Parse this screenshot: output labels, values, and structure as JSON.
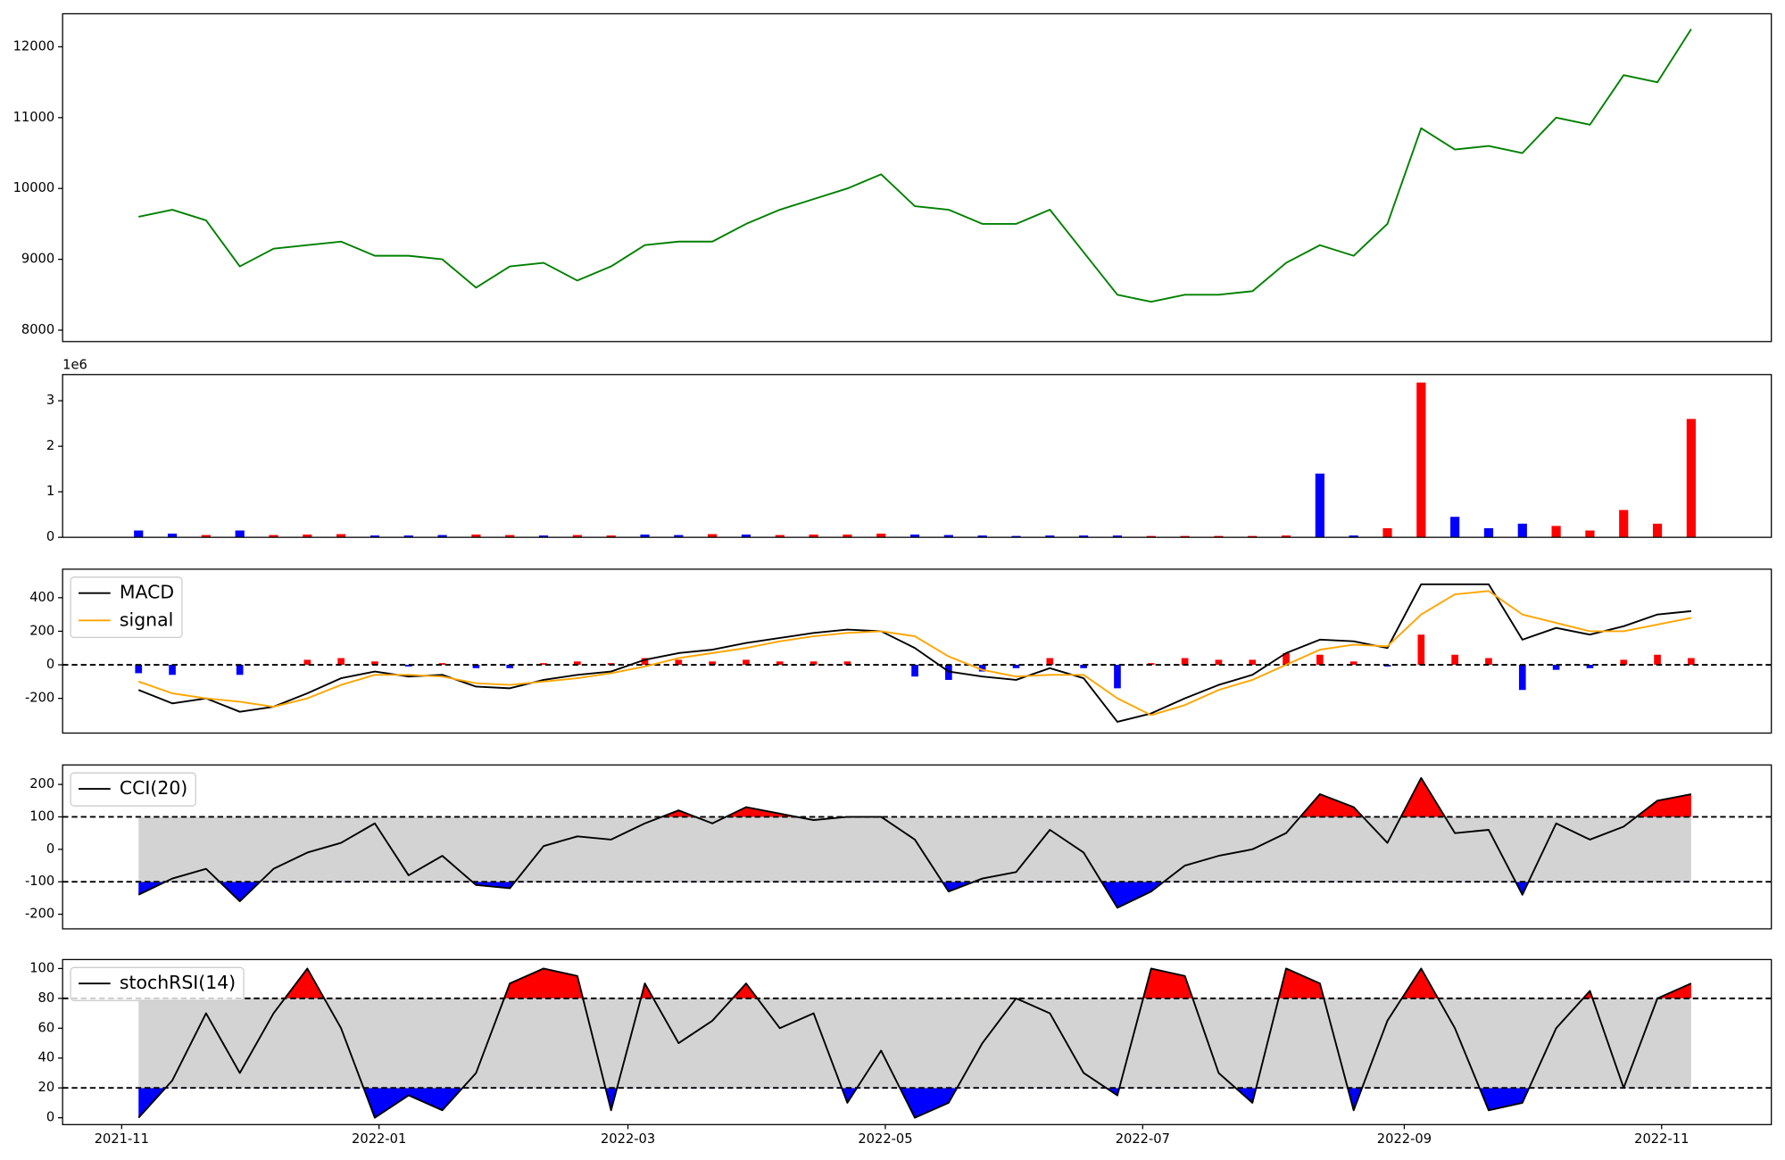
{
  "chart_data": [
    {
      "type": "line",
      "x": [
        18936,
        18944,
        18952,
        18960,
        18968,
        18976,
        18984,
        18992,
        19000,
        19008,
        19016,
        19024,
        19032,
        19040,
        19048,
        19056,
        19064,
        19072,
        19080,
        19088,
        19096,
        19104,
        19112,
        19120,
        19128,
        19136,
        19144,
        19152,
        19160,
        19168,
        19176,
        19184,
        19192,
        19200,
        19208,
        19216,
        19224,
        19232,
        19240,
        19248,
        19256,
        19264,
        19272,
        19280,
        19288,
        19296,
        19304
      ],
      "xlim": [
        18918,
        19323
      ],
      "series": [
        {
          "color": "green",
          "values": [
            9600,
            9700,
            9550,
            8900,
            9150,
            9200,
            9250,
            9050,
            9050,
            9000,
            8600,
            8900,
            8950,
            8700,
            8900,
            9200,
            9250,
            9250,
            9500,
            9700,
            9850,
            10000,
            10200,
            9750,
            9700,
            9500,
            9500,
            9700,
            9100,
            8500,
            8400,
            8500,
            8500,
            8550,
            8950,
            9200,
            9050,
            9500,
            10850,
            10550,
            10600,
            10500,
            11000,
            10900,
            11600,
            11500,
            12250
          ]
        }
      ],
      "ylim": [
        7839,
        12466
      ],
      "yticks": [
        8000,
        9000,
        10000,
        11000,
        12000
      ]
    },
    {
      "type": "bar",
      "x": [
        18936,
        18944,
        18952,
        18960,
        18968,
        18976,
        18984,
        18992,
        19000,
        19008,
        19016,
        19024,
        19032,
        19040,
        19048,
        19056,
        19064,
        19072,
        19080,
        19088,
        19096,
        19104,
        19112,
        19120,
        19128,
        19136,
        19144,
        19152,
        19160,
        19168,
        19176,
        19184,
        19192,
        19200,
        19208,
        19216,
        19224,
        19232,
        19240,
        19248,
        19256,
        19264,
        19272,
        19280,
        19288,
        19296,
        19304
      ],
      "xlim": [
        18918,
        19323
      ],
      "values": [
        150000,
        80000,
        50000,
        150000,
        50000,
        60000,
        70000,
        40000,
        40000,
        50000,
        60000,
        50000,
        40000,
        50000,
        40000,
        60000,
        50000,
        70000,
        60000,
        50000,
        60000,
        60000,
        80000,
        60000,
        50000,
        40000,
        30000,
        40000,
        40000,
        40000,
        30000,
        30000,
        30000,
        30000,
        40000,
        1400000,
        40000,
        200000,
        3400000,
        450000,
        200000,
        300000,
        250000,
        150000,
        600000,
        300000,
        2600000
      ],
      "colors": [
        "blue",
        "blue",
        "red",
        "blue",
        "red",
        "red",
        "red",
        "blue",
        "blue",
        "blue",
        "red",
        "red",
        "blue",
        "red",
        "red",
        "blue",
        "blue",
        "red",
        "blue",
        "red",
        "red",
        "red",
        "red",
        "blue",
        "blue",
        "blue",
        "blue",
        "blue",
        "blue",
        "blue",
        "red",
        "red",
        "red",
        "red",
        "red",
        "blue",
        "blue",
        "red",
        "red",
        "blue",
        "blue",
        "blue",
        "red",
        "red",
        "red",
        "red",
        "red"
      ],
      "ylim": [
        0,
        3575000
      ],
      "yticks": [
        0,
        {
          "value": 1000000,
          "label": "1"
        },
        {
          "value": 2000000,
          "label": "2"
        },
        {
          "value": 3000000,
          "label": "3"
        }
      ],
      "y_offset_label": "1e6"
    },
    {
      "type": "macd",
      "x": [
        18936,
        18944,
        18952,
        18960,
        18968,
        18976,
        18984,
        18992,
        19000,
        19008,
        19016,
        19024,
        19032,
        19040,
        19048,
        19056,
        19064,
        19072,
        19080,
        19088,
        19096,
        19104,
        19112,
        19120,
        19128,
        19136,
        19144,
        19152,
        19160,
        19168,
        19176,
        19184,
        19192,
        19200,
        19208,
        19216,
        19224,
        19232,
        19240,
        19248,
        19256,
        19264,
        19272,
        19280,
        19288,
        19296,
        19304
      ],
      "xlim": [
        18918,
        19323
      ],
      "series": [
        {
          "name": "MACD",
          "color": "black",
          "values": [
            -150,
            -230,
            -200,
            -280,
            -250,
            -170,
            -80,
            -40,
            -70,
            -60,
            -130,
            -140,
            -90,
            -60,
            -40,
            30,
            70,
            90,
            130,
            160,
            190,
            210,
            200,
            100,
            -40,
            -70,
            -90,
            -20,
            -80,
            -340,
            -290,
            -200,
            -120,
            -60,
            70,
            150,
            140,
            100,
            480,
            480,
            480,
            150,
            220,
            180,
            230,
            300,
            320
          ]
        },
        {
          "name": "signal",
          "color": "orange",
          "values": [
            -100,
            -170,
            -200,
            -220,
            -250,
            -200,
            -120,
            -60,
            -60,
            -70,
            -110,
            -120,
            -100,
            -80,
            -50,
            -10,
            40,
            70,
            100,
            140,
            170,
            190,
            200,
            170,
            50,
            -30,
            -70,
            -60,
            -60,
            -200,
            -300,
            -240,
            -150,
            -90,
            0,
            90,
            120,
            110,
            300,
            420,
            440,
            300,
            250,
            200,
            200,
            240,
            280
          ]
        }
      ],
      "histogram": {
        "pos_color": "red",
        "neg_color": "blue",
        "values": [
          -50,
          -60,
          0,
          -60,
          0,
          30,
          40,
          20,
          -10,
          10,
          -20,
          -20,
          10,
          20,
          10,
          40,
          30,
          20,
          30,
          20,
          20,
          20,
          0,
          -70,
          -90,
          -40,
          -20,
          40,
          -20,
          -140,
          10,
          40,
          30,
          30,
          70,
          60,
          20,
          -10,
          180,
          60,
          40,
          -150,
          -30,
          -20,
          30,
          60,
          40
        ]
      },
      "hline": 0,
      "ylim": [
        -407,
        570
      ],
      "yticks": [
        -200,
        0,
        200,
        400
      ],
      "legend": "upper left"
    },
    {
      "type": "oscillator",
      "x": [
        18936,
        18944,
        18952,
        18960,
        18968,
        18976,
        18984,
        18992,
        19000,
        19008,
        19016,
        19024,
        19032,
        19040,
        19048,
        19056,
        19064,
        19072,
        19080,
        19088,
        19096,
        19104,
        19112,
        19120,
        19128,
        19136,
        19144,
        19152,
        19160,
        19168,
        19176,
        19184,
        19192,
        19200,
        19208,
        19216,
        19224,
        19232,
        19240,
        19248,
        19256,
        19264,
        19272,
        19280,
        19288,
        19296,
        19304
      ],
      "xlim": [
        18918,
        19323
      ],
      "series": [
        {
          "name": "CCI(20)",
          "color": "black",
          "values": [
            -140,
            -90,
            -60,
            -160,
            -60,
            -10,
            20,
            80,
            -80,
            -20,
            -110,
            -120,
            10,
            40,
            30,
            80,
            120,
            80,
            130,
            110,
            90,
            100,
            100,
            30,
            -130,
            -90,
            -70,
            60,
            -10,
            -180,
            -130,
            -50,
            -20,
            0,
            50,
            170,
            130,
            20,
            220,
            50,
            60,
            -140,
            80,
            30,
            70,
            150,
            170
          ]
        }
      ],
      "upper": 100,
      "lower": -100,
      "band_color": "lightgray",
      "above_color": "red",
      "below_color": "blue",
      "ylim": [
        -245,
        260
      ],
      "yticks": [
        -200,
        -100,
        0,
        100,
        200
      ],
      "legend": "upper left"
    },
    {
      "type": "oscillator",
      "x": [
        18936,
        18944,
        18952,
        18960,
        18968,
        18976,
        18984,
        18992,
        19000,
        19008,
        19016,
        19024,
        19032,
        19040,
        19048,
        19056,
        19064,
        19072,
        19080,
        19088,
        19096,
        19104,
        19112,
        19120,
        19128,
        19136,
        19144,
        19152,
        19160,
        19168,
        19176,
        19184,
        19192,
        19200,
        19208,
        19216,
        19224,
        19232,
        19240,
        19248,
        19256,
        19264,
        19272,
        19280,
        19288,
        19296,
        19304
      ],
      "xlim": [
        18918,
        19323
      ],
      "series": [
        {
          "name": "stochRSI(14)",
          "color": "black",
          "values": [
            0,
            25,
            70,
            30,
            70,
            100,
            60,
            0,
            15,
            5,
            30,
            90,
            100,
            95,
            5,
            90,
            50,
            65,
            90,
            60,
            70,
            10,
            45,
            0,
            10,
            50,
            80,
            70,
            30,
            15,
            100,
            95,
            30,
            10,
            100,
            90,
            5,
            65,
            100,
            60,
            5,
            10,
            60,
            85,
            20,
            80,
            90
          ]
        }
      ],
      "upper": 80,
      "lower": 20,
      "band_color": "lightgray",
      "above_color": "red",
      "below_color": "blue",
      "ylim": [
        -4.6,
        106
      ],
      "yticks": [
        0,
        20,
        40,
        60,
        80,
        100
      ],
      "legend": "upper left",
      "xticks": [
        {
          "value": 18932,
          "label": "2021-11"
        },
        {
          "value": 18993,
          "label": "2022-01"
        },
        {
          "value": 19052,
          "label": "2022-03"
        },
        {
          "value": 19113,
          "label": "2022-05"
        },
        {
          "value": 19174,
          "label": "2022-07"
        },
        {
          "value": 19236,
          "label": "2022-09"
        },
        {
          "value": 19297,
          "label": "2022-11"
        }
      ]
    }
  ]
}
